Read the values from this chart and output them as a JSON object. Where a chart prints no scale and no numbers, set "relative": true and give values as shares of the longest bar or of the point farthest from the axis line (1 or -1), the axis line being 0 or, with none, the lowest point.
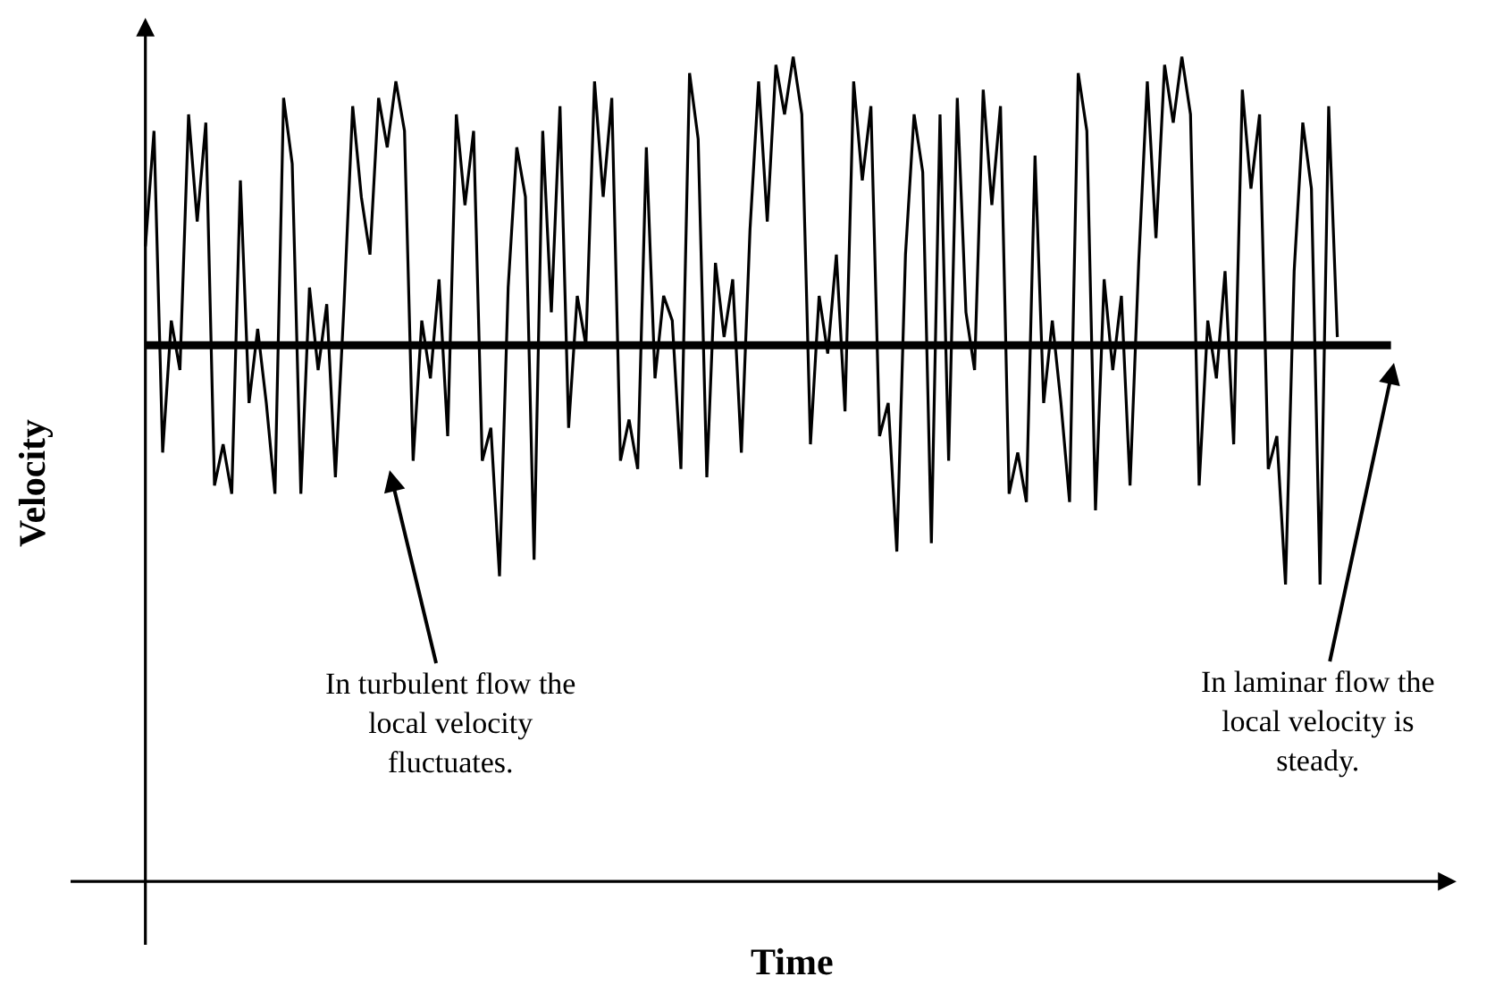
{
  "chart_data": {
    "type": "line",
    "relative": true,
    "xlabel": "Time",
    "ylabel": "Velocity",
    "categories": [
      null,
      null,
      null,
      null,
      null,
      null,
      null,
      null,
      null,
      null,
      null,
      null,
      null,
      null,
      null,
      null,
      null,
      null,
      null,
      null,
      null,
      null,
      null,
      null,
      null,
      null,
      null,
      null,
      null,
      null,
      null,
      null,
      null,
      null,
      null,
      null,
      null,
      null,
      null,
      null,
      null,
      null,
      null,
      null,
      null,
      null,
      null,
      null,
      null,
      null,
      null,
      null,
      null,
      null,
      null,
      null,
      null,
      null,
      null,
      null,
      null,
      null,
      null,
      null,
      null,
      null,
      null,
      null,
      null,
      null,
      null,
      null,
      null,
      null,
      null,
      null,
      null,
      null,
      null,
      null,
      null,
      null,
      null,
      null,
      null,
      null,
      null,
      null,
      null,
      null,
      null,
      null,
      null,
      null,
      null,
      null,
      null,
      null,
      null,
      null,
      null,
      null,
      null,
      null,
      null,
      null,
      null,
      null,
      null,
      null,
      null,
      null,
      null,
      null,
      null,
      null,
      null,
      null,
      null,
      null,
      null,
      null,
      null,
      null,
      null,
      null,
      null,
      null,
      null,
      null,
      null,
      null,
      null,
      null,
      null,
      null,
      null,
      null,
      null
    ],
    "series": [
      {
        "color": "#000000",
        "values": [
          0.77,
          0.91,
          0.52,
          0.68,
          0.62,
          0.93,
          0.8,
          0.92,
          0.48,
          0.53,
          0.47,
          0.85,
          0.58,
          0.67,
          0.58,
          0.47,
          0.95,
          0.87,
          0.47,
          0.72,
          0.62,
          0.7,
          0.49,
          0.7,
          0.94,
          0.83,
          0.76,
          0.95,
          0.89,
          0.97,
          0.91,
          0.51,
          0.68,
          0.61,
          0.73,
          0.54,
          0.93,
          0.82,
          0.91,
          0.51,
          0.55,
          0.37,
          0.72,
          0.89,
          0.83,
          0.39,
          0.91,
          0.69,
          0.94,
          0.55,
          0.71,
          0.65,
          0.97,
          0.83,
          0.95,
          0.51,
          0.56,
          0.5,
          0.89,
          0.61,
          0.71,
          0.68,
          0.5,
          0.98,
          0.9,
          0.49,
          0.75,
          0.66,
          0.73,
          0.52,
          0.79,
          0.97,
          0.8,
          0.99,
          0.93,
          1.0,
          0.93,
          0.53,
          0.71,
          0.64,
          0.76,
          0.57,
          0.97,
          0.85,
          0.94,
          0.54,
          0.58,
          0.4,
          0.76,
          0.93,
          0.86,
          0.41,
          0.93,
          0.51,
          0.95,
          0.69,
          0.62,
          0.96,
          0.82,
          0.94,
          0.47,
          0.52,
          0.46,
          0.88,
          0.58,
          0.68,
          0.58,
          0.46,
          0.98,
          0.91,
          0.45,
          0.73,
          0.62,
          0.71,
          0.48,
          0.75,
          0.97,
          0.78,
          0.99,
          0.92,
          1.0,
          0.93,
          0.48,
          0.68,
          0.61,
          0.74,
          0.53,
          0.96,
          0.84,
          0.93,
          0.5,
          0.54,
          0.36,
          0.74,
          0.92,
          0.84,
          0.36,
          0.94,
          0.66
        ]
      }
    ],
    "ref_lines": [
      {
        "axis": "y",
        "value": 0.65,
        "color": "#000000"
      }
    ],
    "annotations": [
      "In turbulent flow the\nlocal velocity\nfluctuates.",
      "In laminar flow the\nlocal velocity is\nsteady."
    ]
  }
}
